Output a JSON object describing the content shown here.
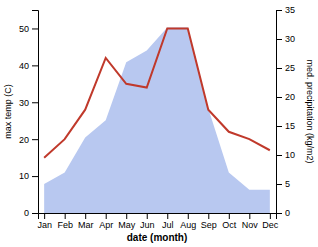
{
  "chart_data": {
    "type": "line",
    "categories": [
      "Jan",
      "Feb",
      "Mar",
      "Apr",
      "May",
      "Jun",
      "Jul",
      "Aug",
      "Sep",
      "Oct",
      "Nov",
      "Dec"
    ],
    "series": [
      {
        "type": "area",
        "color": "#b8c8f0",
        "axis": "y2",
        "values": [
          5,
          7,
          13,
          16,
          26,
          28,
          32,
          32,
          18,
          7,
          4,
          4
        ]
      },
      {
        "type": "line",
        "color": "#c0392b",
        "values": [
          15,
          20,
          28,
          42,
          35,
          34,
          50,
          50,
          28,
          22,
          20,
          17
        ]
      }
    ],
    "xlabel": "date (month)",
    "ylabel": "max temp (C)",
    "y2label": "med. precipitation (kg/m2)",
    "ylim": [
      0,
      55
    ],
    "yticks": [
      0,
      10,
      20,
      30,
      40,
      50
    ],
    "y2lim": [
      0,
      35
    ],
    "y2ticks": [
      0,
      5,
      10,
      15,
      20,
      25,
      30,
      35
    ]
  }
}
